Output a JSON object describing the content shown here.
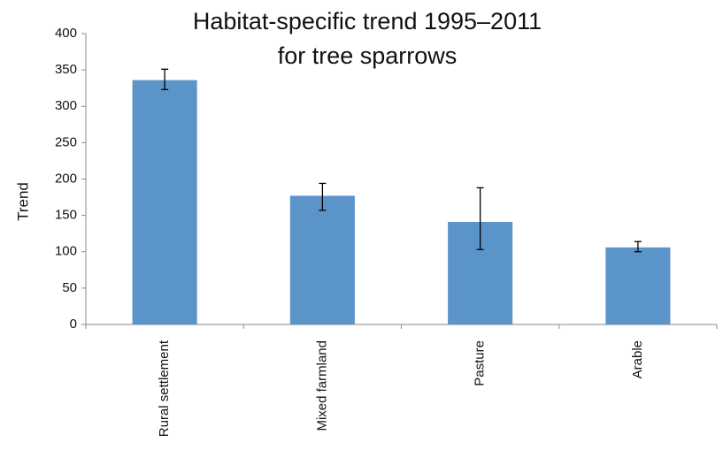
{
  "chart_data": {
    "type": "bar",
    "title": [
      "Habitat-specific trend 1995–2011",
      "for tree sparrows"
    ],
    "y_label": "Trend",
    "categories": [
      "Rural settlement",
      "Mixed farmland",
      "Pasture",
      "Arable"
    ],
    "values": [
      336,
      177,
      141,
      106
    ],
    "error_low": [
      323,
      157,
      103,
      100
    ],
    "error_high": [
      351,
      194,
      188,
      114
    ],
    "color": "#5b94c9",
    "ylim": [
      0,
      400
    ],
    "yticks": [
      0,
      50,
      100,
      150,
      200,
      250,
      300,
      350,
      400
    ],
    "grid": false
  }
}
